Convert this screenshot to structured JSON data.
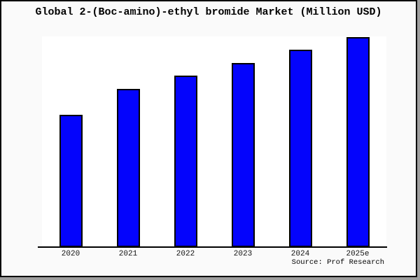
{
  "window": {
    "title": "Global 2-(Boc-amino)-ethyl bromide Market (Million USD)"
  },
  "chart_data": {
    "type": "bar",
    "title": "Global 2-(Boc-amino)-ethyl bromide Market (Million USD)",
    "categories": [
      "2020",
      "2021",
      "2022",
      "2023",
      "2024",
      "2025e"
    ],
    "values": [
      189,
      226,
      245,
      263,
      282,
      300
    ],
    "ylim": [
      0,
      301
    ],
    "xlabel": "",
    "ylabel": "",
    "grid": false,
    "legend": false,
    "y_axis_tick_labels_visible": false,
    "values_note": "No y-axis scale is shown in the figure; values are relative bar heights (pixels above the x-axis)",
    "bar_color": "#0404fc",
    "bar_border_color": "#000000"
  },
  "footer": {
    "source": "Source: Prof Research"
  },
  "colors": {
    "page_bg": "#fafafa",
    "plot_bg": "#ffffff",
    "frame_border": "#000000",
    "frame_shadow": "#9e9e9e",
    "text": "#000000"
  }
}
